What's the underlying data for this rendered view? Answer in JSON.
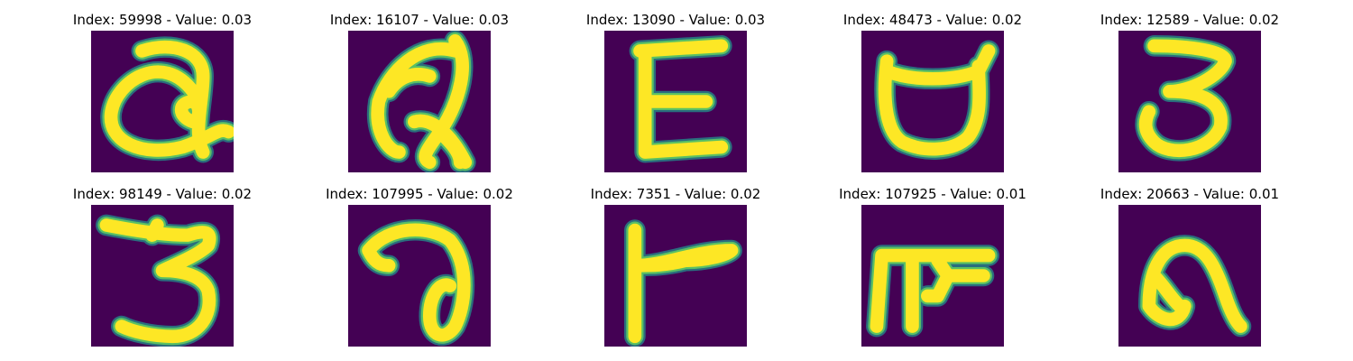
{
  "colors": {
    "background": "#440154",
    "halo": "#21918c",
    "mid": "#5ec962",
    "core": "#fde725"
  },
  "panels": [
    {
      "title": "Index: 59998 - Value: 0.03",
      "glyph": "handwritten-a-with-inner-loop"
    },
    {
      "title": "Index: 16107 - Value: 0.03",
      "glyph": "handwritten-a-slanted"
    },
    {
      "title": "Index: 13090 - Value: 0.03",
      "glyph": "handwritten-e"
    },
    {
      "title": "Index: 48473 - Value: 0.02",
      "glyph": "handwritten-cup-shape"
    },
    {
      "title": "Index: 12589 - Value: 0.02",
      "glyph": "handwritten-3"
    },
    {
      "title": "Index: 98149 - Value: 0.02",
      "glyph": "handwritten-3-wide"
    },
    {
      "title": "Index: 107995 - Value: 0.02",
      "glyph": "handwritten-a-curl"
    },
    {
      "title": "Index: 7351 - Value: 0.02",
      "glyph": "handwritten-l-flag"
    },
    {
      "title": "Index: 107925 - Value: 0.01",
      "glyph": "handwritten-f-hook"
    },
    {
      "title": "Index: 20663 - Value: 0.01",
      "glyph": "handwritten-n-arch"
    }
  ]
}
